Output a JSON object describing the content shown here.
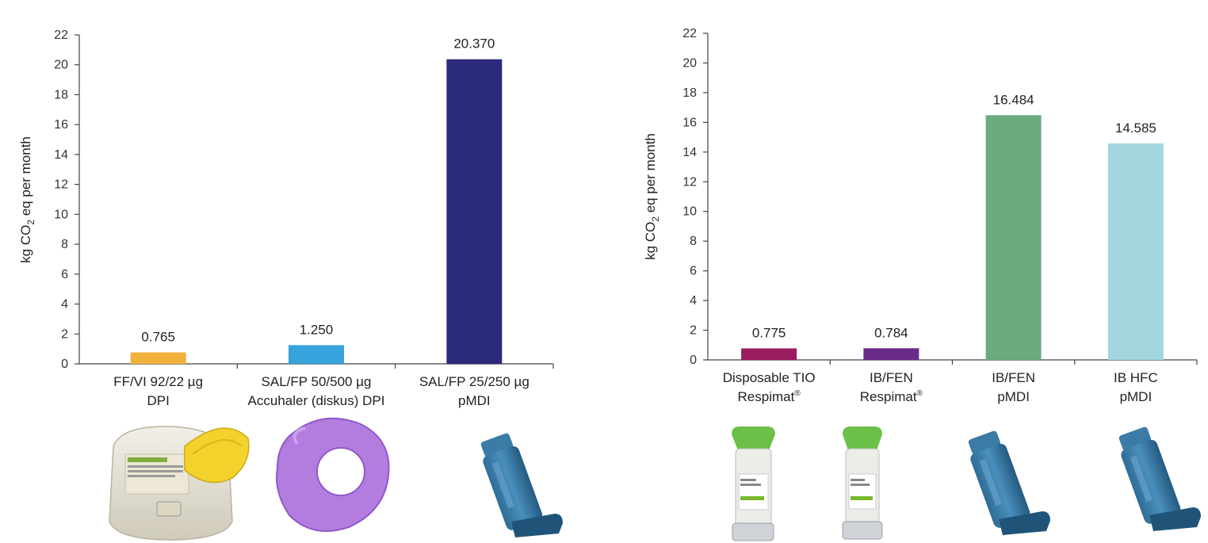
{
  "chart_data": [
    {
      "type": "bar",
      "ylabel": "kg CO2 eq per month",
      "ylabel_main": "kg CO",
      "ylabel_sub": "2",
      "ylabel_rest": " eq per month",
      "ylim": [
        0,
        22
      ],
      "yticks": [
        0,
        2,
        4,
        6,
        8,
        10,
        12,
        14,
        16,
        18,
        20,
        22
      ],
      "grid": false,
      "categories": [
        {
          "line1": "FF/VI 92/22 µg",
          "line2": "DPI"
        },
        {
          "line1": "SAL/FP 50/500 µg",
          "line2": "Accuhaler (diskus) DPI"
        },
        {
          "line1": "SAL/FP 25/250 µg",
          "line2": "pMDI"
        }
      ],
      "values": [
        0.765,
        1.25,
        20.37
      ],
      "value_labels": [
        "0.765",
        "1.250",
        "20.370"
      ],
      "colors": [
        "#f2b13c",
        "#36a3dc",
        "#2b2a7c"
      ],
      "device_icons": [
        "ellipta-inhaler-icon",
        "accuhaler-diskus-icon",
        "pmdi-inhaler-icon"
      ]
    },
    {
      "type": "bar",
      "ylabel": "kg CO2 eq per month",
      "ylabel_main": "kg CO",
      "ylabel_sub": "2",
      "ylabel_rest": " eq per month",
      "ylim": [
        0,
        22
      ],
      "yticks": [
        0,
        2,
        4,
        6,
        8,
        10,
        12,
        14,
        16,
        18,
        20,
        22
      ],
      "grid": false,
      "categories": [
        {
          "line1": "Disposable TIO",
          "line2": "Respimat",
          "sup": "®"
        },
        {
          "line1": "IB/FEN",
          "line2": "Respimat",
          "sup": "®"
        },
        {
          "line1": "IB/FEN",
          "line2": "pMDI"
        },
        {
          "line1": "IB HFC",
          "line2": "pMDI"
        }
      ],
      "values": [
        0.775,
        0.784,
        16.484,
        14.585
      ],
      "value_labels": [
        "0.775",
        "0.784",
        "16.484",
        "14.585"
      ],
      "colors": [
        "#9b1c5c",
        "#6a2a8a",
        "#6aaa7e",
        "#a3d6de"
      ],
      "device_icons": [
        "respimat-inhaler-icon",
        "respimat-inhaler-icon",
        "pmdi-inhaler-icon",
        "pmdi-inhaler-icon"
      ]
    }
  ]
}
